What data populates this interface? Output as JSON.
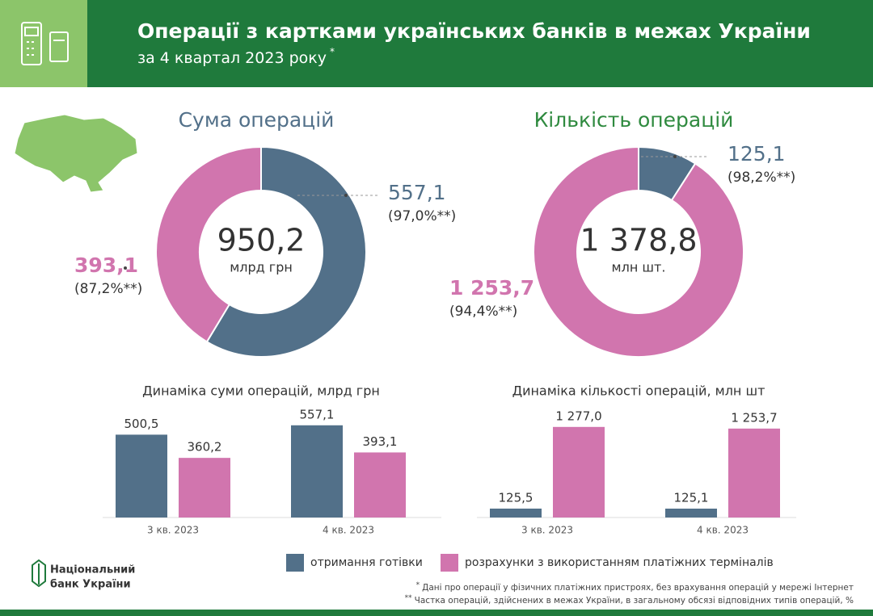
{
  "header": {
    "title": "Операції з картками українських банків в межах України",
    "subtitle": "за 4 квартал 2023 року",
    "subtitle_mark": "*"
  },
  "chart_data": [
    {
      "type": "pie",
      "title": "Сума операцій",
      "title_color": "#527089",
      "values": [
        557.1,
        393.1
      ],
      "value_labels": [
        "557,1",
        "393,1"
      ],
      "colors": [
        "#527089",
        "#d175ae"
      ],
      "share_labels": [
        "(97,0%**)",
        "(87,2%**)"
      ],
      "total": {
        "value": 950.2,
        "label": "950,2"
      },
      "total_unit": "млрд грн"
    },
    {
      "type": "pie",
      "title": "Кількість операцій",
      "title_color": "#2f8a3f",
      "values": [
        125.1,
        1253.7
      ],
      "value_labels": [
        "125,1",
        "1 253,7"
      ],
      "colors": [
        "#527089",
        "#d175ae"
      ],
      "share_labels": [
        "(98,2%**)",
        "(94,4%**)"
      ],
      "total": {
        "value": 1378.8,
        "label": "1 378,8"
      },
      "total_unit": "млн шт."
    },
    {
      "type": "bar",
      "title": "Динаміка суми операцій, млрд грн",
      "categories": [
        "3 кв. 2023",
        "4  кв. 2023"
      ],
      "ylim": [
        0,
        600
      ],
      "series": [
        {
          "name": "отримання готівки",
          "color": "#527089",
          "values": [
            500.5,
            557.1
          ],
          "value_labels": [
            "500,5",
            "557,1"
          ]
        },
        {
          "name": "розрахунки з використанням платіжних терміналів",
          "color": "#d175ae",
          "values": [
            360.2,
            393.1
          ],
          "value_labels": [
            "360,2",
            "393,1"
          ]
        }
      ]
    },
    {
      "type": "bar",
      "title": "Динаміка кількості операцій, млн шт",
      "categories": [
        "3 кв. 2023",
        "4 кв. 2023"
      ],
      "ylim": [
        0,
        1400
      ],
      "series": [
        {
          "color": "#527089",
          "values": [
            125.5,
            125.1
          ],
          "value_labels": [
            "125,5",
            "125,1"
          ]
        },
        {
          "color": "#d175ae",
          "values": [
            1277.0,
            1253.7
          ],
          "value_labels": [
            "1 277,0",
            "1 253,7"
          ]
        }
      ]
    }
  ],
  "footer": {
    "logo": [
      "Національний",
      "банк України"
    ],
    "notes": [
      {
        "mark": "*",
        "text": "Дані про операції у фізичних платіжних пристроях, без врахування операцій у мережі Інтернет"
      },
      {
        "mark": "**",
        "text": "Частка операцій, здійснених в межах України, в загальному обсязі відповідних типів операцій, %"
      }
    ]
  }
}
